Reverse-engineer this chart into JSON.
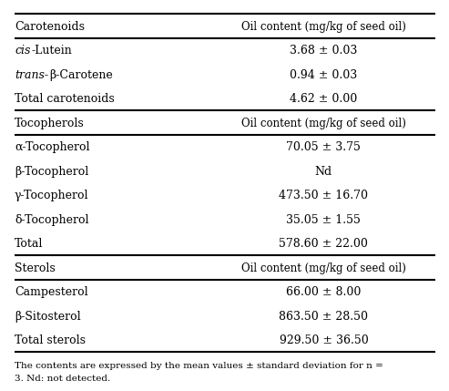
{
  "sections": [
    {
      "header": "Carotenoids",
      "header_col2": "Oil content (mg/kg of seed oil)",
      "rows": [
        {
          "col1_parts": [
            [
              "cis",
              true
            ],
            [
              "-Lutein",
              false
            ]
          ],
          "col2": "3.68 ± 0.03"
        },
        {
          "col1_parts": [
            [
              "trans-",
              true
            ],
            [
              "β-Carotene",
              false
            ]
          ],
          "col2": "0.94 ± 0.03"
        },
        {
          "col1_parts": [
            [
              "Total carotenoids",
              false
            ]
          ],
          "col2": "4.62 ± 0.00"
        }
      ]
    },
    {
      "header": "Tocopherols",
      "header_col2": "Oil content (mg/kg of seed oil)",
      "rows": [
        {
          "col1_parts": [
            [
              "α-Tocopherol",
              false
            ]
          ],
          "col2": "70.05 ± 3.75"
        },
        {
          "col1_parts": [
            [
              "β-Tocopherol",
              false
            ]
          ],
          "col2": "Nd"
        },
        {
          "col1_parts": [
            [
              "γ-Tocopherol",
              false
            ]
          ],
          "col2": "473.50 ± 16.70"
        },
        {
          "col1_parts": [
            [
              "δ-Tocopherol",
              false
            ]
          ],
          "col2": "35.05 ± 1.55"
        },
        {
          "col1_parts": [
            [
              "Total",
              false
            ]
          ],
          "col2": "578.60 ± 22.00"
        }
      ]
    },
    {
      "header": "Sterols",
      "header_col2": "Oil content (mg/kg of seed oil)",
      "rows": [
        {
          "col1_parts": [
            [
              "Campesterol",
              false
            ]
          ],
          "col2": "66.00 ± 8.00"
        },
        {
          "col1_parts": [
            [
              "β-Sitosterol",
              false
            ]
          ],
          "col2": "863.50 ± 28.50"
        },
        {
          "col1_parts": [
            [
              "Total sterols",
              false
            ]
          ],
          "col2": "929.50 ± 36.50"
        }
      ]
    }
  ],
  "footnote_line1": "The contents are expressed by the mean values ± standard deviation for n =",
  "footnote_line2": "3. Nd: not detected.",
  "bg_color": "#ffffff",
  "text_color": "#000000",
  "font_size": 9.0,
  "col_split": 0.47
}
